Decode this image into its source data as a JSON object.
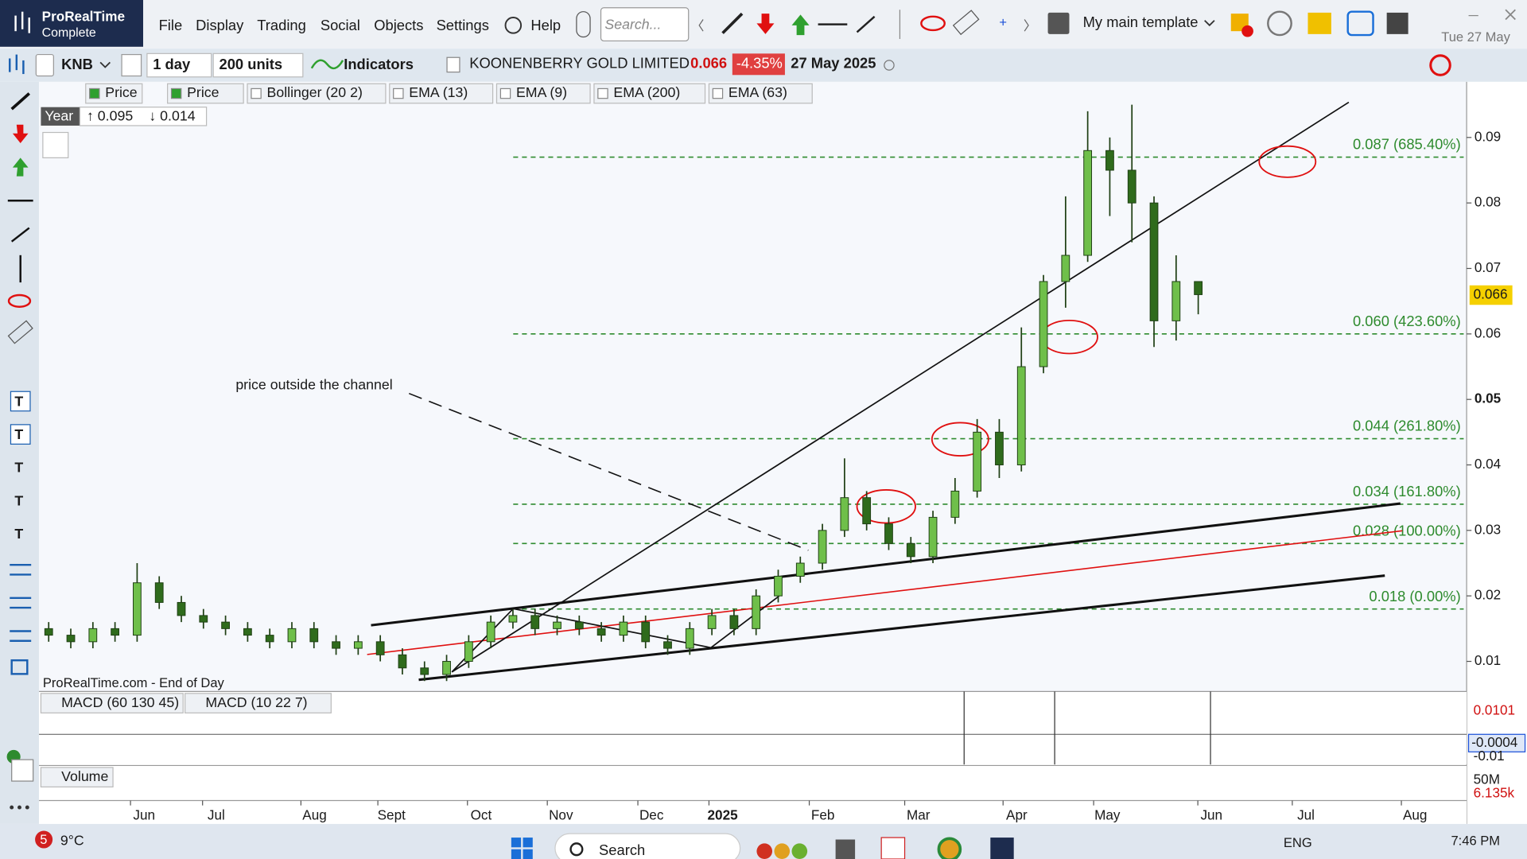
{
  "app": {
    "name": "ProRealTime",
    "edition": "Complete"
  },
  "menu": [
    "File",
    "Display",
    "Trading",
    "Social",
    "Objects",
    "Settings",
    "Help"
  ],
  "search_placeholder": "Search...",
  "template": "My main template",
  "header_date": "Tue 27 May",
  "toolbar": {
    "ticker": "KNB",
    "period": "1 day",
    "units": "200 units",
    "indicators": "Indicators",
    "instrument": "KOONENBERRY GOLD LIMITED",
    "price": "0.066",
    "change": "-4.35%",
    "date": "27 May 2025"
  },
  "indicator_tags": [
    "Price",
    "Price",
    "Bollinger (20 2)",
    "EMA (13)",
    "EMA (9)",
    "EMA (200)",
    "EMA (63)"
  ],
  "year_box": {
    "label": "Year",
    "high": "↑ 0.095",
    "low": "↓ 0.014"
  },
  "chart_data": {
    "type": "candlestick",
    "source": "ProRealTime.com - End of Day",
    "annotation": "price outside the channel",
    "last_price_label": "0.066",
    "up_color": "#6fbf4a",
    "down_color": "#2f6b1c",
    "wick_color": "#1f3f14",
    "open": [
      0.015,
      0.014,
      0.013,
      0.015,
      0.014,
      0.022,
      0.019,
      0.017,
      0.016,
      0.015,
      0.014,
      0.013,
      0.015,
      0.013,
      0.012,
      0.013,
      0.011,
      0.009,
      0.008,
      0.01,
      0.013,
      0.016,
      0.017,
      0.015,
      0.016,
      0.015,
      0.014,
      0.016,
      0.013,
      0.012,
      0.015,
      0.017,
      0.015,
      0.02,
      0.023,
      0.025,
      0.03,
      0.035,
      0.031,
      0.028,
      0.026,
      0.032,
      0.036,
      0.045,
      0.04,
      0.055,
      0.068,
      0.072,
      0.088,
      0.085,
      0.08,
      0.062,
      0.068
    ],
    "high": [
      0.016,
      0.015,
      0.016,
      0.016,
      0.025,
      0.023,
      0.02,
      0.018,
      0.017,
      0.016,
      0.015,
      0.016,
      0.016,
      0.014,
      0.014,
      0.014,
      0.012,
      0.01,
      0.011,
      0.014,
      0.017,
      0.018,
      0.018,
      0.017,
      0.017,
      0.016,
      0.017,
      0.017,
      0.014,
      0.016,
      0.018,
      0.018,
      0.021,
      0.024,
      0.026,
      0.031,
      0.041,
      0.036,
      0.032,
      0.029,
      0.033,
      0.038,
      0.047,
      0.047,
      0.061,
      0.069,
      0.081,
      0.094,
      0.09,
      0.095,
      0.081,
      0.072,
      0.068
    ],
    "low": [
      0.013,
      0.012,
      0.012,
      0.013,
      0.013,
      0.018,
      0.016,
      0.015,
      0.014,
      0.013,
      0.012,
      0.012,
      0.012,
      0.011,
      0.011,
      0.01,
      0.008,
      0.007,
      0.007,
      0.009,
      0.012,
      0.015,
      0.014,
      0.014,
      0.014,
      0.013,
      0.013,
      0.012,
      0.011,
      0.011,
      0.014,
      0.014,
      0.014,
      0.019,
      0.022,
      0.024,
      0.029,
      0.03,
      0.027,
      0.025,
      0.025,
      0.031,
      0.035,
      0.038,
      0.039,
      0.054,
      0.064,
      0.071,
      0.078,
      0.074,
      0.058,
      0.059,
      0.063
    ],
    "close": [
      0.014,
      0.013,
      0.015,
      0.014,
      0.022,
      0.019,
      0.017,
      0.016,
      0.015,
      0.014,
      0.013,
      0.015,
      0.013,
      0.012,
      0.013,
      0.011,
      0.009,
      0.008,
      0.01,
      0.013,
      0.016,
      0.017,
      0.015,
      0.016,
      0.015,
      0.014,
      0.016,
      0.013,
      0.012,
      0.015,
      0.017,
      0.015,
      0.02,
      0.023,
      0.025,
      0.03,
      0.035,
      0.031,
      0.028,
      0.026,
      0.032,
      0.036,
      0.045,
      0.04,
      0.055,
      0.068,
      0.072,
      0.088,
      0.085,
      0.08,
      0.062,
      0.068,
      0.066
    ],
    "ylim": [
      0.0057,
      0.0982
    ],
    "yticks": [
      0.01,
      0.02,
      0.03,
      0.04,
      0.05,
      0.06,
      0.07,
      0.08,
      0.09
    ],
    "xtick_labels": [
      "Jun",
      "Jul",
      "Aug",
      "Sept",
      "Oct",
      "Nov",
      "Dec",
      "2025",
      "Feb",
      "Mar",
      "Apr",
      "May",
      "Jun",
      "Jul",
      "Aug"
    ],
    "fib_levels": [
      {
        "value": 0.087,
        "label": "0.087 (685.40%)"
      },
      {
        "value": 0.06,
        "label": "0.060 (423.60%)"
      },
      {
        "value": 0.044,
        "label": "0.044 (261.80%)"
      },
      {
        "value": 0.034,
        "label": "0.034 (161.80%)"
      },
      {
        "value": 0.028,
        "label": "0.028 (100.00%)"
      },
      {
        "value": 0.018,
        "label": "0.018 (0.00%)"
      }
    ],
    "fib_color": "#2e8b2e"
  },
  "macd": {
    "tags": [
      "MACD (60 130 45)",
      "MACD (10 22 7)"
    ],
    "axis_labels": [
      "0.0101",
      "-0.0004",
      "-0.01"
    ]
  },
  "volume": {
    "tag": "Volume",
    "axis_labels": [
      "50M",
      "6.135k"
    ]
  },
  "taskbar": {
    "weather_badge": "5",
    "temperature": "9°C",
    "search": "Search",
    "language": "ENG",
    "time": "7:46 PM"
  }
}
